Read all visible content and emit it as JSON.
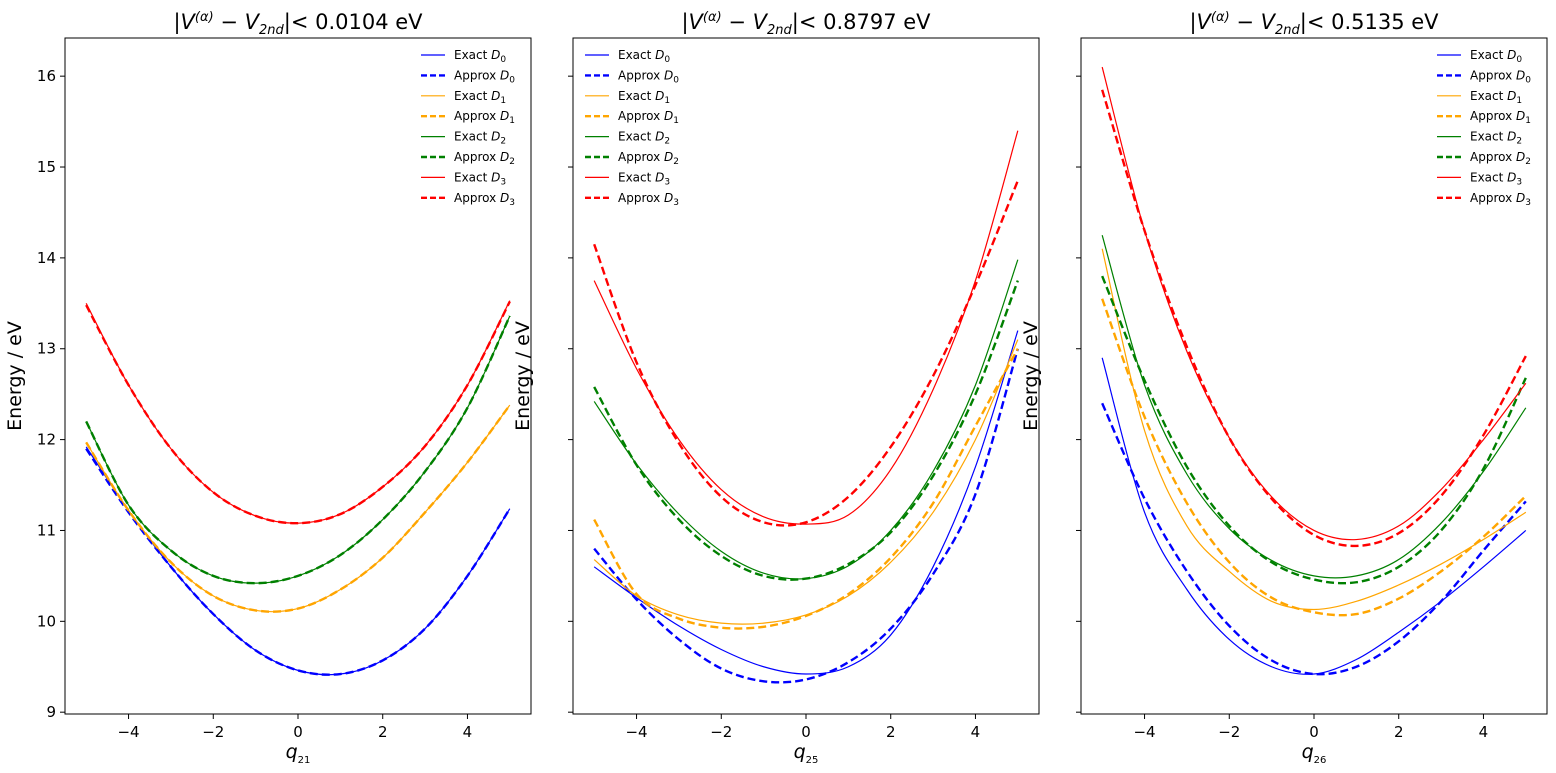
{
  "figure": {
    "ylabel": "Energy / eV",
    "yticks": [
      9,
      10,
      11,
      12,
      13,
      14,
      15,
      16
    ],
    "xticks": [
      -4,
      -2,
      0,
      2,
      4
    ],
    "ylim": [
      8.98,
      16.42
    ],
    "xlim": [
      -5.5,
      5.5
    ],
    "colors": {
      "D0": "#0000ff",
      "D1": "#ffa500",
      "D2": "#008000",
      "D3": "#ff0000"
    }
  },
  "legend": [
    {
      "label": "Exact",
      "state": "D",
      "sub": "0",
      "style": "solid",
      "color": "#0000ff"
    },
    {
      "label": "Approx",
      "state": "D",
      "sub": "0",
      "style": "dashed",
      "color": "#0000ff"
    },
    {
      "label": "Exact",
      "state": "D",
      "sub": "1",
      "style": "solid",
      "color": "#ffa500"
    },
    {
      "label": "Approx",
      "state": "D",
      "sub": "1",
      "style": "dashed",
      "color": "#ffa500"
    },
    {
      "label": "Exact",
      "state": "D",
      "sub": "2",
      "style": "solid",
      "color": "#008000"
    },
    {
      "label": "Approx",
      "state": "D",
      "sub": "2",
      "style": "dashed",
      "color": "#008000"
    },
    {
      "label": "Exact",
      "state": "D",
      "sub": "3",
      "style": "solid",
      "color": "#ff0000"
    },
    {
      "label": "Approx",
      "state": "D",
      "sub": "3",
      "style": "dashed",
      "color": "#ff0000"
    }
  ],
  "chart_data": [
    {
      "type": "line",
      "title_threshold": "< 0.0104 eV",
      "xlabel_sub": "21",
      "legend_position": "upper right",
      "x": [
        -5,
        -4,
        -3,
        -2,
        -1,
        0,
        1,
        2,
        3,
        4,
        5
      ],
      "series": [
        {
          "name": "Exact D0",
          "style": "solid",
          "color": "#0000ff",
          "values": [
            11.92,
            11.22,
            10.6,
            10.08,
            9.68,
            9.46,
            9.42,
            9.57,
            9.92,
            10.5,
            11.24
          ]
        },
        {
          "name": "Approx D0",
          "style": "dashed",
          "color": "#0000ff",
          "values": [
            11.9,
            11.2,
            10.6,
            10.08,
            9.68,
            9.46,
            9.42,
            9.57,
            9.92,
            10.5,
            11.24
          ]
        },
        {
          "name": "Exact D1",
          "style": "solid",
          "color": "#ffa500",
          "values": [
            11.97,
            11.22,
            10.65,
            10.28,
            10.12,
            10.14,
            10.35,
            10.7,
            11.2,
            11.75,
            12.38
          ]
        },
        {
          "name": "Approx D1",
          "style": "dashed",
          "color": "#ffa500",
          "values": [
            11.97,
            11.22,
            10.65,
            10.28,
            10.12,
            10.14,
            10.35,
            10.7,
            11.2,
            11.75,
            12.38
          ]
        },
        {
          "name": "Exact D2",
          "style": "solid",
          "color": "#008000",
          "values": [
            12.2,
            11.28,
            10.78,
            10.5,
            10.42,
            10.5,
            10.73,
            11.12,
            11.65,
            12.35,
            13.36
          ]
        },
        {
          "name": "Approx D2",
          "style": "dashed",
          "color": "#008000",
          "values": [
            12.2,
            11.28,
            10.78,
            10.5,
            10.42,
            10.5,
            10.73,
            11.12,
            11.65,
            12.35,
            13.36
          ]
        },
        {
          "name": "Exact D3",
          "style": "solid",
          "color": "#ff0000",
          "values": [
            13.5,
            12.6,
            11.9,
            11.42,
            11.16,
            11.08,
            11.18,
            11.48,
            11.93,
            12.6,
            13.53
          ]
        },
        {
          "name": "Approx D3",
          "style": "dashed",
          "color": "#ff0000",
          "values": [
            13.48,
            12.6,
            11.9,
            11.42,
            11.16,
            11.08,
            11.18,
            11.48,
            11.93,
            12.6,
            13.52
          ]
        }
      ]
    },
    {
      "type": "line",
      "title_threshold": "< 0.8797 eV",
      "xlabel_sub": "25",
      "legend_position": "upper left",
      "x": [
        -5,
        -4,
        -3,
        -2,
        -1,
        0,
        1,
        2,
        3,
        4,
        5
      ],
      "series": [
        {
          "name": "Exact D0",
          "style": "solid",
          "color": "#0000ff",
          "values": [
            10.6,
            10.26,
            9.95,
            9.69,
            9.5,
            9.42,
            9.5,
            9.85,
            10.6,
            11.7,
            13.2
          ]
        },
        {
          "name": "Approx D0",
          "style": "dashed",
          "color": "#0000ff",
          "values": [
            10.8,
            10.24,
            9.8,
            9.48,
            9.34,
            9.36,
            9.55,
            9.92,
            10.52,
            11.4,
            13.0
          ]
        },
        {
          "name": "Exact D1",
          "style": "solid",
          "color": "#ffa500",
          "values": [
            10.68,
            10.28,
            10.07,
            9.98,
            9.98,
            10.07,
            10.28,
            10.65,
            11.2,
            12.0,
            13.1
          ]
        },
        {
          "name": "Approx D1",
          "style": "dashed",
          "color": "#ffa500",
          "values": [
            11.12,
            10.3,
            10.03,
            9.93,
            9.94,
            10.06,
            10.3,
            10.7,
            11.3,
            12.15,
            13.0
          ]
        },
        {
          "name": "Exact D2",
          "style": "solid",
          "color": "#008000",
          "values": [
            12.42,
            11.73,
            11.18,
            10.77,
            10.53,
            10.47,
            10.61,
            11.0,
            11.65,
            12.6,
            13.98
          ]
        },
        {
          "name": "Approx D2",
          "style": "dashed",
          "color": "#008000",
          "values": [
            12.58,
            11.72,
            11.12,
            10.72,
            10.5,
            10.47,
            10.63,
            10.98,
            11.6,
            12.5,
            13.75
          ]
        },
        {
          "name": "Exact D3",
          "style": "solid",
          "color": "#ff0000",
          "values": [
            13.75,
            12.78,
            12.0,
            11.45,
            11.15,
            11.07,
            11.17,
            11.67,
            12.55,
            13.75,
            15.4
          ]
        },
        {
          "name": "Approx D3",
          "style": "dashed",
          "color": "#ff0000",
          "values": [
            14.15,
            12.85,
            11.96,
            11.37,
            11.09,
            11.09,
            11.37,
            11.92,
            12.7,
            13.7,
            14.85
          ]
        }
      ]
    },
    {
      "type": "line",
      "title_threshold": "< 0.5135 eV",
      "xlabel_sub": "26",
      "legend_position": "upper right",
      "x": [
        -5,
        -4,
        -3,
        -2,
        -1,
        0,
        1,
        2,
        3,
        4,
        5
      ],
      "series": [
        {
          "name": "Exact D0",
          "style": "solid",
          "color": "#0000ff",
          "values": [
            12.9,
            11.2,
            10.35,
            9.8,
            9.5,
            9.42,
            9.58,
            9.88,
            10.22,
            10.6,
            11.0
          ]
        },
        {
          "name": "Approx D0",
          "style": "dashed",
          "color": "#0000ff",
          "values": [
            12.4,
            11.35,
            10.55,
            9.95,
            9.57,
            9.42,
            9.5,
            9.78,
            10.22,
            10.78,
            11.32
          ]
        },
        {
          "name": "Exact D1",
          "style": "solid",
          "color": "#ffa500",
          "values": [
            14.1,
            12.1,
            11.05,
            10.55,
            10.22,
            10.13,
            10.22,
            10.4,
            10.63,
            10.9,
            11.2
          ]
        },
        {
          "name": "Approx D1",
          "style": "dashed",
          "color": "#ffa500",
          "values": [
            13.55,
            12.25,
            11.3,
            10.65,
            10.26,
            10.1,
            10.08,
            10.25,
            10.55,
            10.93,
            11.38
          ]
        },
        {
          "name": "Exact D2",
          "style": "solid",
          "color": "#008000",
          "values": [
            14.25,
            12.6,
            11.62,
            11.02,
            10.67,
            10.5,
            10.5,
            10.68,
            11.08,
            11.65,
            12.35
          ]
        },
        {
          "name": "Approx D2",
          "style": "dashed",
          "color": "#008000",
          "values": [
            13.8,
            12.65,
            11.7,
            11.05,
            10.65,
            10.46,
            10.43,
            10.6,
            11.0,
            11.68,
            12.68
          ]
        },
        {
          "name": "Exact D3",
          "style": "solid",
          "color": "#ff0000",
          "values": [
            16.1,
            14.3,
            12.97,
            12.02,
            11.37,
            11.0,
            10.9,
            11.05,
            11.45,
            12.0,
            12.62
          ]
        },
        {
          "name": "Approx D3",
          "style": "dashed",
          "color": "#ff0000",
          "values": [
            15.85,
            14.3,
            13.02,
            12.02,
            11.35,
            10.95,
            10.83,
            10.97,
            11.38,
            12.05,
            12.92
          ]
        }
      ]
    }
  ]
}
